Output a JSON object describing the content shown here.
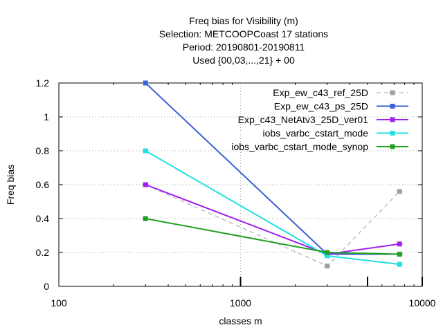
{
  "chart_data": {
    "type": "line",
    "title_lines": [
      "Freq bias  for Visibility (m)",
      "Selection: METCOOPCoast     17 stations",
      "Period: 20190801-20190811",
      "Used {00,03,...,21} + 00"
    ],
    "xlabel": "classes m",
    "ylabel": "Freq bias",
    "x_scale": "log",
    "xlim": [
      100,
      10000
    ],
    "ylim": [
      0,
      1.2
    ],
    "x_ticks": [
      {
        "value": 100,
        "label": "100"
      },
      {
        "value": 1000,
        "label": "1000"
      },
      {
        "value": 10000,
        "label": "10000"
      }
    ],
    "y_ticks": [
      {
        "value": 0,
        "label": "0"
      },
      {
        "value": 0.2,
        "label": "0.2"
      },
      {
        "value": 0.4,
        "label": "0.4"
      },
      {
        "value": 0.6,
        "label": "0.6"
      },
      {
        "value": 0.8,
        "label": "0.8"
      },
      {
        "value": 1.0,
        "label": "1"
      },
      {
        "value": 1.2,
        "label": "1.2"
      }
    ],
    "grid": true,
    "legend_position": "top-right",
    "x": [
      300,
      3000,
      7500
    ],
    "series": [
      {
        "name": "Exp_ew_c43_ref_25D",
        "values": [
          0.6,
          0.12,
          0.56
        ],
        "color": "#a0a0a0",
        "dashed": true
      },
      {
        "name": "Exp_ew_c43_ps_25D",
        "values": [
          1.2,
          0.19,
          0.19
        ],
        "color": "#3c5fd4",
        "dashed": false
      },
      {
        "name": "Exp_c43_NetAtv3_25D_ver01",
        "values": [
          0.6,
          0.19,
          0.25
        ],
        "color": "#a020f0",
        "dashed": false
      },
      {
        "name": "iobs_varbc_cstart_mode",
        "values": [
          0.8,
          0.18,
          0.13
        ],
        "color": "#20e0e0",
        "dashed": false
      },
      {
        "name": "iobs_varbc_cstart_mode_synop",
        "values": [
          0.4,
          0.2,
          0.19
        ],
        "color": "#20a020",
        "dashed": false
      }
    ],
    "extra_tick_marks_x": [
      1000,
      5000,
      10000
    ]
  }
}
